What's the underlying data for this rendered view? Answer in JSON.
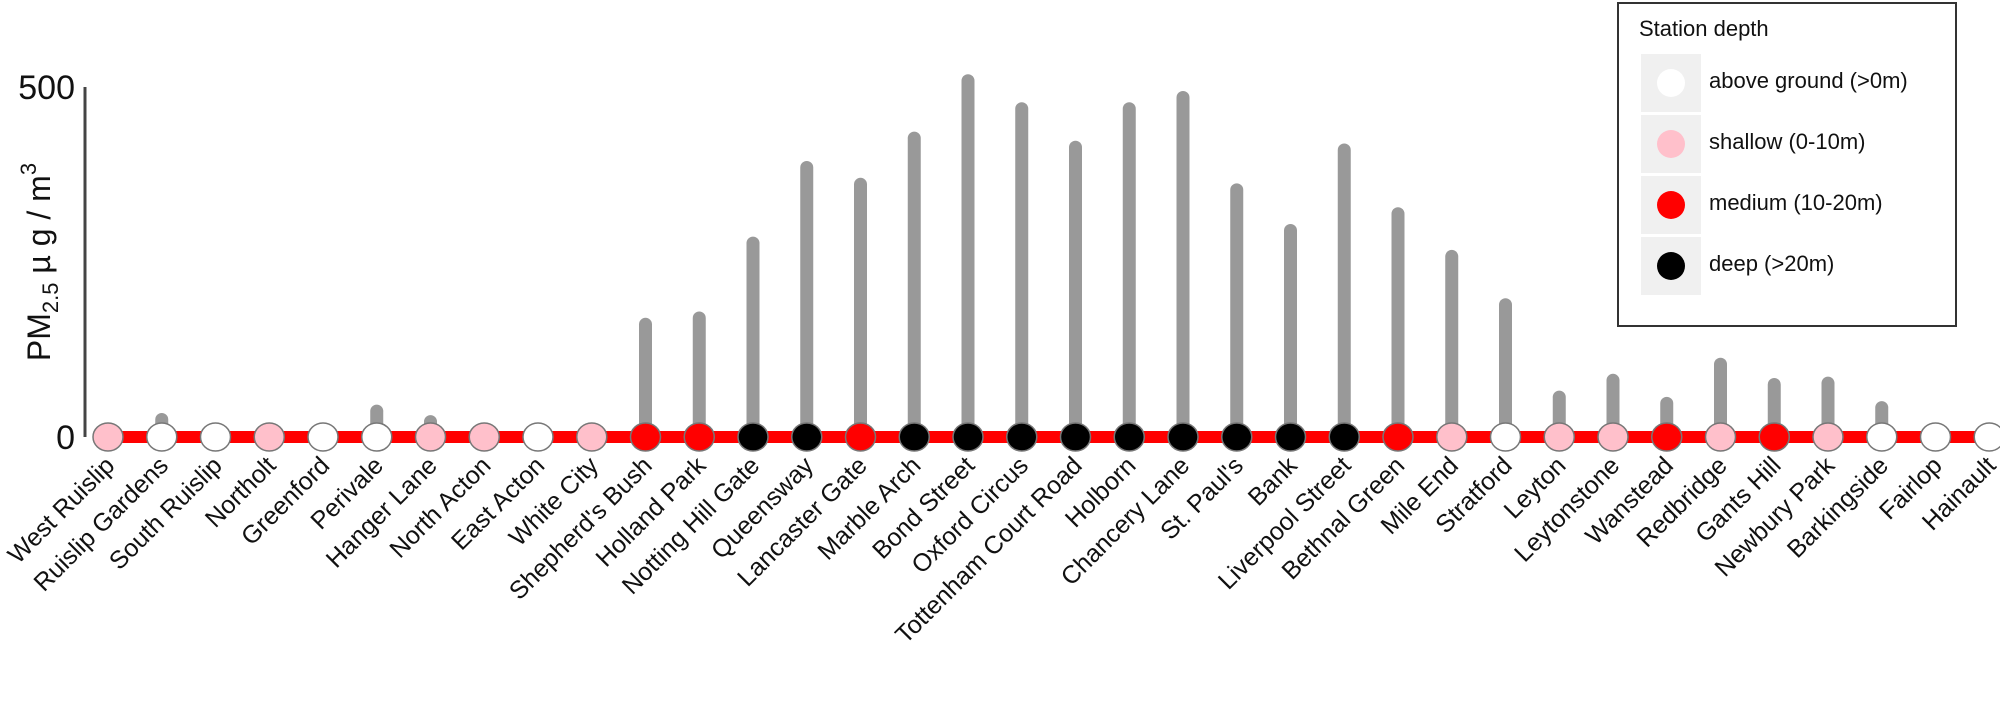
{
  "chart_data": {
    "type": "bar",
    "title": "",
    "xlabel": "",
    "ylabel": "PM2.5 µg/m3",
    "ylabel_parts": {
      "main": "PM",
      "sub": "2.5",
      "unit": " µ g / m",
      "sup": "3"
    },
    "ylim": [
      0,
      500
    ],
    "yticks": [
      "0",
      "500"
    ],
    "grid": false,
    "legend_position": "top-right",
    "categories": [
      "West Ruislip",
      "Ruislip Gardens",
      "South Ruislip",
      "Northolt",
      "Greenford",
      "Perivale",
      "Hanger Lane",
      "North Acton",
      "East Acton",
      "White City",
      "Shepherd's Bush",
      "Holland Park",
      "Notting Hill Gate",
      "Queensway",
      "Lancaster Gate",
      "Marble Arch",
      "Bond Street",
      "Oxford Circus",
      "Tottenham Court Road",
      "Holborn",
      "Chancery Lane",
      "St. Paul's",
      "Bank",
      "Liverpool Street",
      "Bethnal Green",
      "Mile End",
      "Stratford",
      "Leyton",
      "Leytonstone",
      "Wanstead",
      "Redbridge",
      "Gants Hill",
      "Newbury Park",
      "Barkingside",
      "Fairlop",
      "Hainault"
    ],
    "values": [
      0,
      25,
      0,
      0,
      0,
      37,
      22,
      0,
      0,
      0,
      161,
      170,
      277,
      385,
      361,
      427,
      509,
      469,
      414,
      469,
      485,
      353,
      295,
      410,
      319,
      258,
      189,
      57,
      81,
      48,
      104,
      75,
      77,
      42,
      0,
      0
    ],
    "depth": [
      "shallow",
      "above",
      "above",
      "shallow",
      "above",
      "above",
      "shallow",
      "shallow",
      "above",
      "shallow",
      "medium",
      "medium",
      "deep",
      "deep",
      "medium",
      "deep",
      "deep",
      "deep",
      "deep",
      "deep",
      "deep",
      "deep",
      "deep",
      "deep",
      "medium",
      "shallow",
      "above",
      "shallow",
      "shallow",
      "medium",
      "shallow",
      "medium",
      "shallow",
      "above",
      "above",
      "above"
    ]
  },
  "legend": {
    "title": "Station depth",
    "items": [
      {
        "key": "above",
        "label": "above ground (>0m)",
        "color": "#ffffff"
      },
      {
        "key": "shallow",
        "label": "shallow (0-10m)",
        "color": "#ffc0cb"
      },
      {
        "key": "medium",
        "label": "medium (10-20m)",
        "color": "#ff0000"
      },
      {
        "key": "deep",
        "label": "deep (>20m)",
        "color": "#000000"
      }
    ]
  },
  "colors": {
    "line": "#ff0000",
    "bar": "#999999",
    "axis": "#444444"
  }
}
